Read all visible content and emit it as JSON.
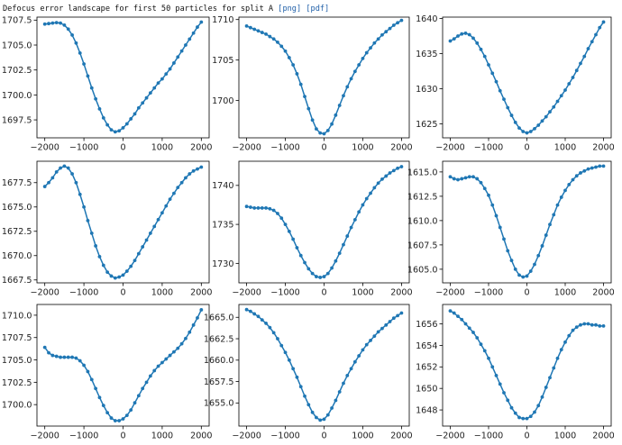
{
  "header": {
    "title": "Defocus error landscape for first 50 particles for split A",
    "links": [
      "[png]",
      "[pdf]"
    ]
  },
  "chart_data": [
    {
      "type": "line",
      "x": [
        -2000,
        -1900,
        -1800,
        -1700,
        -1600,
        -1500,
        -1400,
        -1300,
        -1200,
        -1100,
        -1000,
        -900,
        -800,
        -700,
        -600,
        -500,
        -400,
        -300,
        -200,
        -100,
        0,
        100,
        200,
        300,
        400,
        500,
        600,
        700,
        800,
        900,
        1000,
        1100,
        1200,
        1300,
        1400,
        1500,
        1600,
        1700,
        1800,
        1900,
        2000
      ],
      "y": [
        1707.1,
        1707.15,
        1707.2,
        1707.25,
        1707.2,
        1707.0,
        1706.6,
        1706.0,
        1705.2,
        1704.2,
        1703.1,
        1701.9,
        1700.7,
        1699.6,
        1698.6,
        1697.7,
        1697.0,
        1696.5,
        1696.3,
        1696.4,
        1696.7,
        1697.1,
        1697.6,
        1698.1,
        1698.7,
        1699.2,
        1699.7,
        1700.2,
        1700.7,
        1701.2,
        1701.6,
        1702.1,
        1702.6,
        1703.2,
        1703.8,
        1704.4,
        1705.0,
        1705.6,
        1706.2,
        1706.8,
        1707.3
      ],
      "xlim": [
        -2200,
        2200
      ],
      "ylim": [
        1695.7,
        1707.8
      ],
      "xticks": [
        -2000,
        -1000,
        0,
        1000,
        2000
      ],
      "xtick_labels": [
        "−2000",
        "−1000",
        "0",
        "1000",
        "2000"
      ],
      "yticks": [
        1697.5,
        1700.0,
        1702.5,
        1705.0,
        1707.5
      ],
      "ytick_labels": [
        "1697.5",
        "1700.0",
        "1702.5",
        "1705.0",
        "1707.5"
      ]
    },
    {
      "type": "line",
      "x": [
        -2000,
        -1900,
        -1800,
        -1700,
        -1600,
        -1500,
        -1400,
        -1300,
        -1200,
        -1100,
        -1000,
        -900,
        -800,
        -700,
        -600,
        -500,
        -400,
        -300,
        -200,
        -100,
        0,
        100,
        200,
        300,
        400,
        500,
        600,
        700,
        800,
        900,
        1000,
        1100,
        1200,
        1300,
        1400,
        1500,
        1600,
        1700,
        1800,
        1900,
        2000
      ],
      "y": [
        1709.2,
        1709.0,
        1708.8,
        1708.6,
        1708.4,
        1708.2,
        1707.9,
        1707.6,
        1707.2,
        1706.7,
        1706.1,
        1705.3,
        1704.4,
        1703.3,
        1702.0,
        1700.5,
        1699.0,
        1697.6,
        1696.5,
        1696.0,
        1695.9,
        1696.3,
        1697.1,
        1698.2,
        1699.4,
        1700.6,
        1701.7,
        1702.7,
        1703.6,
        1704.4,
        1705.2,
        1705.9,
        1706.5,
        1707.1,
        1707.6,
        1708.1,
        1708.5,
        1708.9,
        1709.3,
        1709.6,
        1709.9
      ],
      "xlim": [
        -2200,
        2200
      ],
      "ylim": [
        1695.4,
        1710.3
      ],
      "xticks": [
        -2000,
        -1000,
        0,
        1000,
        2000
      ],
      "xtick_labels": [
        "−2000",
        "−1000",
        "0",
        "1000",
        "2000"
      ],
      "yticks": [
        1700,
        1705,
        1710
      ],
      "ytick_labels": [
        "1700",
        "1705",
        "1710"
      ]
    },
    {
      "type": "line",
      "x": [
        -2000,
        -1900,
        -1800,
        -1700,
        -1600,
        -1500,
        -1400,
        -1300,
        -1200,
        -1100,
        -1000,
        -900,
        -800,
        -700,
        -600,
        -500,
        -400,
        -300,
        -200,
        -100,
        0,
        100,
        200,
        300,
        400,
        500,
        600,
        700,
        800,
        900,
        1000,
        1100,
        1200,
        1300,
        1400,
        1500,
        1600,
        1700,
        1800,
        1900,
        2000
      ],
      "y": [
        1636.8,
        1637.1,
        1637.5,
        1637.8,
        1637.9,
        1637.7,
        1637.2,
        1636.5,
        1635.6,
        1634.6,
        1633.4,
        1632.2,
        1631.0,
        1629.7,
        1628.5,
        1627.3,
        1626.2,
        1625.2,
        1624.4,
        1623.9,
        1623.7,
        1623.9,
        1624.3,
        1624.8,
        1625.4,
        1626.0,
        1626.7,
        1627.4,
        1628.2,
        1629.0,
        1629.8,
        1630.7,
        1631.6,
        1632.6,
        1633.6,
        1634.6,
        1635.7,
        1636.7,
        1637.7,
        1638.7,
        1639.5
      ],
      "xlim": [
        -2200,
        2200
      ],
      "ylim": [
        1623.0,
        1640.2
      ],
      "xticks": [
        -2000,
        -1000,
        0,
        1000,
        2000
      ],
      "xtick_labels": [
        "−2000",
        "−1000",
        "0",
        "1000",
        "2000"
      ],
      "yticks": [
        1625,
        1630,
        1635,
        1640
      ],
      "ytick_labels": [
        "1625",
        "1630",
        "1635",
        "1640"
      ]
    },
    {
      "type": "line",
      "x": [
        -2000,
        -1900,
        -1800,
        -1700,
        -1600,
        -1500,
        -1400,
        -1300,
        -1200,
        -1100,
        -1000,
        -900,
        -800,
        -700,
        -600,
        -500,
        -400,
        -300,
        -200,
        -100,
        0,
        100,
        200,
        300,
        400,
        500,
        600,
        700,
        800,
        900,
        1000,
        1100,
        1200,
        1300,
        1400,
        1500,
        1600,
        1700,
        1800,
        1900,
        2000
      ],
      "y": [
        1677.1,
        1677.5,
        1678.0,
        1678.6,
        1679.0,
        1679.2,
        1679.0,
        1678.4,
        1677.5,
        1676.3,
        1675.0,
        1673.6,
        1672.3,
        1671.0,
        1669.9,
        1669.0,
        1668.3,
        1667.9,
        1667.7,
        1667.8,
        1668.0,
        1668.4,
        1668.9,
        1669.5,
        1670.2,
        1670.9,
        1671.6,
        1672.3,
        1673.0,
        1673.7,
        1674.4,
        1675.1,
        1675.8,
        1676.4,
        1677.0,
        1677.5,
        1678.0,
        1678.4,
        1678.7,
        1678.9,
        1679.1
      ],
      "xlim": [
        -2200,
        2200
      ],
      "ylim": [
        1667.2,
        1679.7
      ],
      "xticks": [
        -2000,
        -1000,
        0,
        1000,
        2000
      ],
      "xtick_labels": [
        "−2000",
        "−1000",
        "0",
        "1000",
        "2000"
      ],
      "yticks": [
        1667.5,
        1670.0,
        1672.5,
        1675.0,
        1677.5
      ],
      "ytick_labels": [
        "1667.5",
        "1670.0",
        "1672.5",
        "1675.0",
        "1677.5"
      ]
    },
    {
      "type": "line",
      "x": [
        -2000,
        -1900,
        -1800,
        -1700,
        -1600,
        -1500,
        -1400,
        -1300,
        -1200,
        -1100,
        -1000,
        -900,
        -800,
        -700,
        -600,
        -500,
        -400,
        -300,
        -200,
        -100,
        0,
        100,
        200,
        300,
        400,
        500,
        600,
        700,
        800,
        900,
        1000,
        1100,
        1200,
        1300,
        1400,
        1500,
        1600,
        1700,
        1800,
        1900,
        2000
      ],
      "y": [
        1737.3,
        1737.2,
        1737.1,
        1737.1,
        1737.1,
        1737.1,
        1737.0,
        1736.8,
        1736.4,
        1735.8,
        1735.0,
        1734.1,
        1733.1,
        1732.0,
        1731.0,
        1730.1,
        1729.3,
        1728.7,
        1728.3,
        1728.2,
        1728.3,
        1728.7,
        1729.4,
        1730.3,
        1731.3,
        1732.4,
        1733.5,
        1734.6,
        1735.6,
        1736.6,
        1737.5,
        1738.3,
        1739.0,
        1739.7,
        1740.3,
        1740.8,
        1741.2,
        1741.6,
        1741.9,
        1742.2,
        1742.4
      ],
      "xlim": [
        -2200,
        2200
      ],
      "ylim": [
        1727.5,
        1743.1
      ],
      "xticks": [
        -2000,
        -1000,
        0,
        1000,
        2000
      ],
      "xtick_labels": [
        "−2000",
        "−1000",
        "0",
        "1000",
        "2000"
      ],
      "yticks": [
        1730,
        1735,
        1740
      ],
      "ytick_labels": [
        "1730",
        "1735",
        "1740"
      ]
    },
    {
      "type": "line",
      "x": [
        -2000,
        -1900,
        -1800,
        -1700,
        -1600,
        -1500,
        -1400,
        -1300,
        -1200,
        -1100,
        -1000,
        -900,
        -800,
        -700,
        -600,
        -500,
        -400,
        -300,
        -200,
        -100,
        0,
        100,
        200,
        300,
        400,
        500,
        600,
        700,
        800,
        900,
        1000,
        1100,
        1200,
        1300,
        1400,
        1500,
        1600,
        1700,
        1800,
        1900,
        2000
      ],
      "y": [
        1614.5,
        1614.3,
        1614.2,
        1614.3,
        1614.4,
        1614.5,
        1614.5,
        1614.3,
        1613.9,
        1613.3,
        1612.6,
        1611.6,
        1610.5,
        1609.3,
        1608.1,
        1606.9,
        1605.9,
        1605.0,
        1604.4,
        1604.2,
        1604.3,
        1604.8,
        1605.5,
        1606.4,
        1607.4,
        1608.5,
        1609.6,
        1610.6,
        1611.6,
        1612.4,
        1613.1,
        1613.7,
        1614.2,
        1614.6,
        1614.9,
        1615.1,
        1615.3,
        1615.4,
        1615.5,
        1615.6,
        1615.6
      ],
      "xlim": [
        -2200,
        2200
      ],
      "ylim": [
        1603.6,
        1616.1
      ],
      "xticks": [
        -2000,
        -1000,
        0,
        1000,
        2000
      ],
      "xtick_labels": [
        "−2000",
        "−1000",
        "0",
        "1000",
        "2000"
      ],
      "yticks": [
        1605.0,
        1607.5,
        1610.0,
        1612.5,
        1615.0
      ],
      "ytick_labels": [
        "1605.0",
        "1607.5",
        "1610.0",
        "1612.5",
        "1615.0"
      ]
    },
    {
      "type": "line",
      "x": [
        -2000,
        -1900,
        -1800,
        -1700,
        -1600,
        -1500,
        -1400,
        -1300,
        -1200,
        -1100,
        -1000,
        -900,
        -800,
        -700,
        -600,
        -500,
        -400,
        -300,
        -200,
        -100,
        0,
        100,
        200,
        300,
        400,
        500,
        600,
        700,
        800,
        900,
        1000,
        1100,
        1200,
        1300,
        1400,
        1500,
        1600,
        1700,
        1800,
        1900,
        2000
      ],
      "y": [
        1706.4,
        1705.8,
        1705.5,
        1705.4,
        1705.3,
        1705.3,
        1705.3,
        1705.3,
        1705.2,
        1704.9,
        1704.4,
        1703.7,
        1702.8,
        1701.8,
        1700.8,
        1699.9,
        1699.1,
        1698.5,
        1698.2,
        1698.2,
        1698.4,
        1698.8,
        1699.4,
        1700.2,
        1701.0,
        1701.8,
        1702.5,
        1703.2,
        1703.8,
        1704.3,
        1704.7,
        1705.1,
        1705.5,
        1705.9,
        1706.3,
        1706.8,
        1707.4,
        1708.1,
        1708.9,
        1709.7,
        1710.6
      ],
      "xlim": [
        -2200,
        2200
      ],
      "ylim": [
        1697.6,
        1711.2
      ],
      "xticks": [
        -2000,
        -1000,
        0,
        1000,
        2000
      ],
      "xtick_labels": [
        "−2000",
        "−1000",
        "0",
        "1000",
        "2000"
      ],
      "yticks": [
        1700.0,
        1702.5,
        1705.0,
        1707.5,
        1710.0
      ],
      "ytick_labels": [
        "1700.0",
        "1702.5",
        "1705.0",
        "1707.5",
        "1710.0"
      ]
    },
    {
      "type": "line",
      "x": [
        -2000,
        -1900,
        -1800,
        -1700,
        -1600,
        -1500,
        -1400,
        -1300,
        -1200,
        -1100,
        -1000,
        -900,
        -800,
        -700,
        -600,
        -500,
        -400,
        -300,
        -200,
        -100,
        0,
        100,
        200,
        300,
        400,
        500,
        600,
        700,
        800,
        900,
        1000,
        1100,
        1200,
        1300,
        1400,
        1500,
        1600,
        1700,
        1800,
        1900,
        2000
      ],
      "y": [
        1665.9,
        1665.7,
        1665.4,
        1665.1,
        1664.7,
        1664.3,
        1663.8,
        1663.2,
        1662.5,
        1661.7,
        1660.9,
        1660.0,
        1659.0,
        1658.0,
        1656.9,
        1655.8,
        1654.8,
        1653.9,
        1653.3,
        1653.0,
        1653.1,
        1653.6,
        1654.4,
        1655.3,
        1656.3,
        1657.3,
        1658.2,
        1659.0,
        1659.8,
        1660.5,
        1661.2,
        1661.8,
        1662.3,
        1662.8,
        1663.3,
        1663.7,
        1664.1,
        1664.5,
        1664.9,
        1665.2,
        1665.5
      ],
      "xlim": [
        -2200,
        2200
      ],
      "ylim": [
        1652.3,
        1666.5
      ],
      "xticks": [
        -2000,
        -1000,
        0,
        1000,
        2000
      ],
      "xtick_labels": [
        "−2000",
        "−1000",
        "0",
        "1000",
        "2000"
      ],
      "yticks": [
        1655.0,
        1657.5,
        1660.0,
        1662.5,
        1665.0
      ],
      "ytick_labels": [
        "1655.0",
        "1657.5",
        "1660.0",
        "1662.5",
        "1665.0"
      ]
    },
    {
      "type": "line",
      "x": [
        -2000,
        -1900,
        -1800,
        -1700,
        -1600,
        -1500,
        -1400,
        -1300,
        -1200,
        -1100,
        -1000,
        -900,
        -800,
        -700,
        -600,
        -500,
        -400,
        -300,
        -200,
        -100,
        0,
        100,
        200,
        300,
        400,
        500,
        600,
        700,
        800,
        900,
        1000,
        1100,
        1200,
        1300,
        1400,
        1500,
        1600,
        1700,
        1800,
        1900,
        2000
      ],
      "y": [
        1657.2,
        1657.0,
        1656.7,
        1656.4,
        1656.0,
        1655.6,
        1655.2,
        1654.7,
        1654.1,
        1653.5,
        1652.8,
        1652.0,
        1651.2,
        1650.4,
        1649.6,
        1648.9,
        1648.2,
        1647.7,
        1647.3,
        1647.2,
        1647.2,
        1647.4,
        1647.8,
        1648.4,
        1649.2,
        1650.1,
        1651.0,
        1651.9,
        1652.8,
        1653.6,
        1654.3,
        1654.9,
        1655.4,
        1655.7,
        1655.9,
        1656.0,
        1656.0,
        1655.9,
        1655.9,
        1655.8,
        1655.8
      ],
      "xlim": [
        -2200,
        2200
      ],
      "ylim": [
        1646.5,
        1657.8
      ],
      "xticks": [
        -2000,
        -1000,
        0,
        1000,
        2000
      ],
      "xtick_labels": [
        "−2000",
        "−1000",
        "0",
        "1000",
        "2000"
      ],
      "yticks": [
        1648,
        1650,
        1652,
        1654,
        1656
      ],
      "ytick_labels": [
        "1648",
        "1650",
        "1652",
        "1654",
        "1656"
      ]
    }
  ],
  "style": {
    "line_color": "#1f77b4",
    "axis_color": "#000000",
    "text_color": "#222222"
  }
}
